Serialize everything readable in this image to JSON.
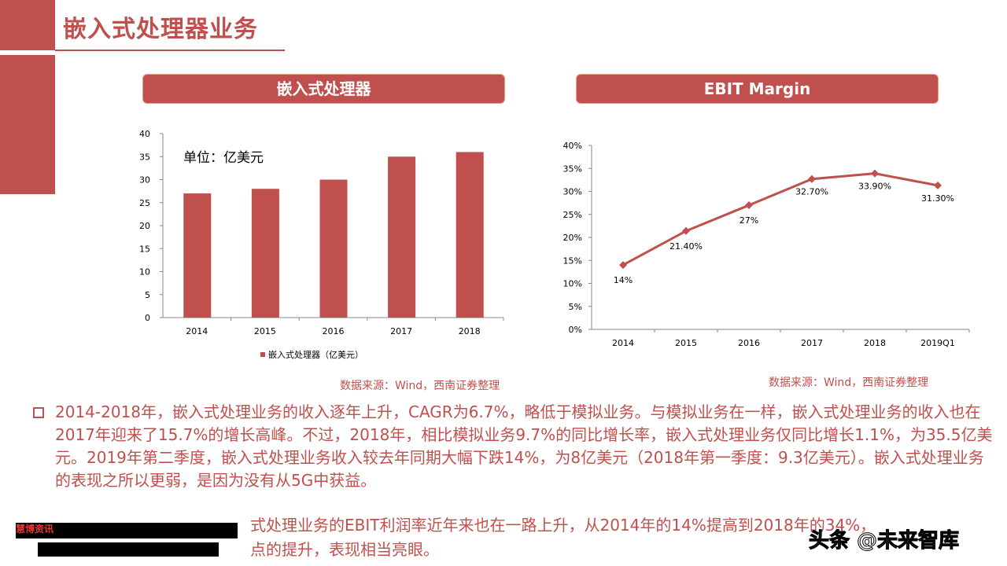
{
  "page": {
    "title": "嵌入式处理器业务"
  },
  "left_panel": {
    "header": "嵌入式处理器",
    "unit_note": "单位：亿美元",
    "source": "数据来源：Wind，西南证券整理"
  },
  "right_panel": {
    "header": "EBIT Margin",
    "source": "数据来源：Wind，西南证券整理"
  },
  "chart_data": [
    {
      "type": "bar",
      "categories": [
        "2014",
        "2015",
        "2016",
        "2017",
        "2018"
      ],
      "series": [
        {
          "name": "嵌入式处理器（亿美元）",
          "values": [
            27,
            28,
            30,
            35,
            36
          ]
        }
      ],
      "ylim": [
        0,
        40
      ],
      "yticks": [
        "0",
        "5",
        "10",
        "15",
        "20",
        "25",
        "30",
        "35",
        "40"
      ],
      "legend": "bottom",
      "grid": false,
      "color": "#c0504d"
    },
    {
      "type": "line",
      "categories": [
        "2014",
        "2015",
        "2016",
        "2017",
        "2018",
        "2019Q1"
      ],
      "values": [
        14,
        21.4,
        27,
        32.7,
        33.9,
        31.3
      ],
      "data_labels": [
        "14%",
        "21.40%",
        "27%",
        "32.70%",
        "33.90%",
        "31.30%"
      ],
      "ylim": [
        0,
        40
      ],
      "yticks": [
        "0%",
        "5%",
        "10%",
        "15%",
        "20%",
        "25%",
        "30%",
        "35%",
        "40%"
      ],
      "grid": false,
      "marker": "diamond",
      "color": "#c0504d"
    }
  ],
  "body": {
    "paragraph1": "2014-2018年，嵌入式处理业务的收入逐年上升，CAGR为6.7%，略低于模拟业务。与模拟业务在一样，嵌入式处理业务的收入也在2017年迎来了15.7%的增长高峰。不过，2018年，相比模拟业务9.7%的同比增长率，嵌入式处理业务仅同比增长1.1%，为35.5亿美元。2019年第二季度，嵌入式处理业务收入较去年同期大幅下跌14%，为8亿美元（2018年第一季度：9.3亿美元）。嵌入式处理业务的表现之所以更弱，是因为没有从5G中获益。",
    "paragraph2_line1": "式处理业务的EBIT利润率近年来也在一路上升，从2014年的14%提高到2018年的34%，",
    "paragraph2_line2": "点的提升，表现相当亮眼。",
    "overlay_tag": "慧博资讯"
  },
  "watermark": "头条 @未来智库"
}
